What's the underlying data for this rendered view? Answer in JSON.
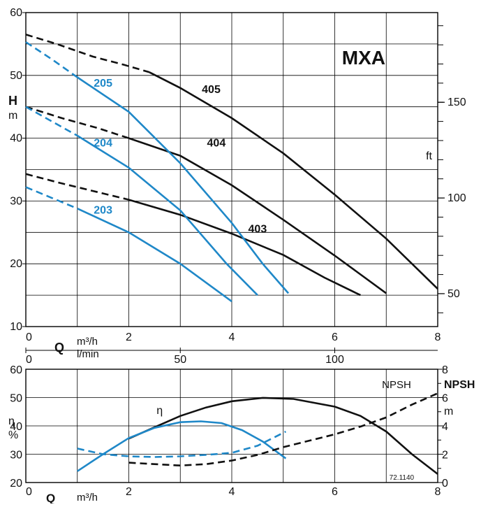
{
  "chart_data": [
    {
      "type": "line",
      "title": "MXA",
      "x_unit_primary": "m³/h",
      "x_unit_secondary": "l/min",
      "x_axis_letter": "Q",
      "xlim": [
        0,
        8
      ],
      "xticks": [
        "0",
        "2",
        "4",
        "6",
        "8"
      ],
      "x2ticks": [
        "0",
        "50",
        "100"
      ],
      "x2_values": [
        0,
        50,
        100
      ],
      "ylabel": "H",
      "yunit": "m",
      "ylim": [
        10,
        60
      ],
      "yticks": [
        "10",
        "20",
        "30",
        "40",
        "50",
        "60"
      ],
      "y2label": "ft",
      "y2ticks": [
        "50",
        "100",
        "150"
      ],
      "y2_values": [
        50,
        100,
        150
      ],
      "grid": true,
      "series": [
        {
          "name": "405",
          "color": "#111111",
          "dashed": [
            [
              0,
              56.5
            ],
            [
              0.6,
              55.0
            ],
            [
              1.3,
              53.0
            ],
            [
              1.9,
              51.7
            ],
            [
              2.4,
              50.5
            ]
          ],
          "solid": [
            [
              2.4,
              50.5
            ],
            [
              3.0,
              48.0
            ],
            [
              4.0,
              43.2
            ],
            [
              5.0,
              37.6
            ],
            [
              6.0,
              31.0
            ],
            [
              7.0,
              24.0
            ],
            [
              8.0,
              16.0
            ]
          ],
          "label_at": [
            3.6,
            47.2
          ]
        },
        {
          "name": "404",
          "color": "#111111",
          "dashed": [
            [
              0,
              45.0
            ],
            [
              0.7,
              43.2
            ],
            [
              1.4,
              41.6
            ],
            [
              2.0,
              40.0
            ]
          ],
          "solid": [
            [
              2.0,
              40.0
            ],
            [
              3.0,
              37.2
            ],
            [
              4.0,
              32.5
            ],
            [
              5.0,
              27.0
            ],
            [
              6.0,
              21.3
            ],
            [
              7.0,
              15.3
            ]
          ],
          "label_at": [
            3.7,
            38.7
          ]
        },
        {
          "name": "403",
          "color": "#111111",
          "dashed": [
            [
              0,
              34.3
            ],
            [
              0.7,
              32.8
            ],
            [
              1.4,
              31.4
            ],
            [
              2.0,
              30.2
            ]
          ],
          "solid": [
            [
              2.0,
              30.2
            ],
            [
              3.0,
              27.8
            ],
            [
              4.0,
              24.8
            ],
            [
              5.0,
              21.4
            ],
            [
              5.8,
              17.8
            ],
            [
              6.5,
              15.0
            ]
          ],
          "label_at": [
            4.5,
            25.0
          ]
        },
        {
          "name": "205",
          "color": "#1f88c8",
          "dashed": [
            [
              0,
              55.3
            ],
            [
              0.5,
              52.6
            ],
            [
              1.0,
              49.7
            ]
          ],
          "solid": [
            [
              1.0,
              49.7
            ],
            [
              2.0,
              44.2
            ],
            [
              3.0,
              36.0
            ],
            [
              4.0,
              26.5
            ],
            [
              4.6,
              20.0
            ],
            [
              5.1,
              15.3
            ]
          ],
          "label_at": [
            1.5,
            48.2
          ]
        },
        {
          "name": "204",
          "color": "#1f88c8",
          "dashed": [
            [
              0,
              45.0
            ],
            [
              0.5,
              42.7
            ],
            [
              1.0,
              40.4
            ]
          ],
          "solid": [
            [
              1.0,
              40.4
            ],
            [
              2.0,
              35.3
            ],
            [
              3.0,
              28.5
            ],
            [
              3.9,
              20.0
            ],
            [
              4.5,
              15.0
            ]
          ],
          "label_at": [
            1.5,
            38.7
          ]
        },
        {
          "name": "203",
          "color": "#1f88c8",
          "dashed": [
            [
              0,
              32.2
            ],
            [
              0.5,
              30.5
            ],
            [
              1.0,
              28.8
            ]
          ],
          "solid": [
            [
              1.0,
              28.8
            ],
            [
              2.0,
              25.0
            ],
            [
              3.0,
              20.0
            ],
            [
              4.0,
              14.0
            ]
          ],
          "label_at": [
            1.5,
            28.0
          ]
        }
      ]
    },
    {
      "type": "line",
      "x_unit_primary": "m³/h",
      "x_axis_letter": "Q",
      "xlim": [
        0,
        8
      ],
      "xticks": [
        "0",
        "2",
        "4",
        "6",
        "8"
      ],
      "ylabel": "η",
      "yunit": "%",
      "ylim": [
        20,
        60
      ],
      "yticks": [
        "20",
        "30",
        "40",
        "50",
        "60"
      ],
      "y2label": "NPSH",
      "y2unit": "m",
      "y2lim": [
        0,
        8
      ],
      "y2ticks": [
        "0",
        "2",
        "4",
        "6",
        "8"
      ],
      "eta_symbol": "η",
      "npsh_text": "NPSH",
      "footnote": "72.1140",
      "grid": true,
      "series": [
        {
          "role": "efficiency",
          "color": "#111111",
          "style": "solid",
          "axis": "left",
          "points": [
            [
              2.0,
              35.5
            ],
            [
              2.5,
              39.5
            ],
            [
              3.0,
              43.5
            ],
            [
              3.5,
              46.5
            ],
            [
              4.0,
              48.7
            ],
            [
              4.6,
              49.9
            ],
            [
              5.2,
              49.5
            ],
            [
              6.0,
              46.8
            ],
            [
              6.5,
              43.5
            ],
            [
              7.0,
              38.0
            ],
            [
              7.5,
              30.0
            ],
            [
              8.0,
              23.0
            ]
          ]
        },
        {
          "role": "efficiency",
          "color": "#1f88c8",
          "style": "solid",
          "axis": "left",
          "points": [
            [
              1.0,
              24.0
            ],
            [
              1.5,
              30.0
            ],
            [
              2.0,
              35.7
            ],
            [
              2.5,
              39.3
            ],
            [
              3.0,
              41.3
            ],
            [
              3.4,
              41.6
            ],
            [
              3.8,
              41.0
            ],
            [
              4.2,
              38.5
            ],
            [
              4.6,
              34.5
            ],
            [
              5.05,
              28.5
            ]
          ]
        },
        {
          "role": "npsh",
          "color": "#111111",
          "style": "dashed",
          "axis": "right",
          "points": [
            [
              2.0,
              1.4
            ],
            [
              2.5,
              1.3
            ],
            [
              3.0,
              1.2
            ],
            [
              3.5,
              1.3
            ],
            [
              4.0,
              1.55
            ],
            [
              4.5,
              1.95
            ],
            [
              5.0,
              2.5
            ],
            [
              5.5,
              2.95
            ],
            [
              6.0,
              3.4
            ],
            [
              6.5,
              3.95
            ],
            [
              7.0,
              4.6
            ],
            [
              7.5,
              5.5
            ],
            [
              8.0,
              6.3
            ]
          ]
        },
        {
          "role": "npsh",
          "color": "#1f88c8",
          "style": "dashed",
          "axis": "right",
          "points": [
            [
              1.0,
              2.4
            ],
            [
              1.5,
              2.0
            ],
            [
              2.0,
              1.85
            ],
            [
              2.5,
              1.8
            ],
            [
              3.0,
              1.85
            ],
            [
              3.5,
              1.95
            ],
            [
              4.0,
              2.1
            ],
            [
              4.5,
              2.6
            ],
            [
              5.05,
              3.6
            ]
          ]
        }
      ]
    }
  ]
}
